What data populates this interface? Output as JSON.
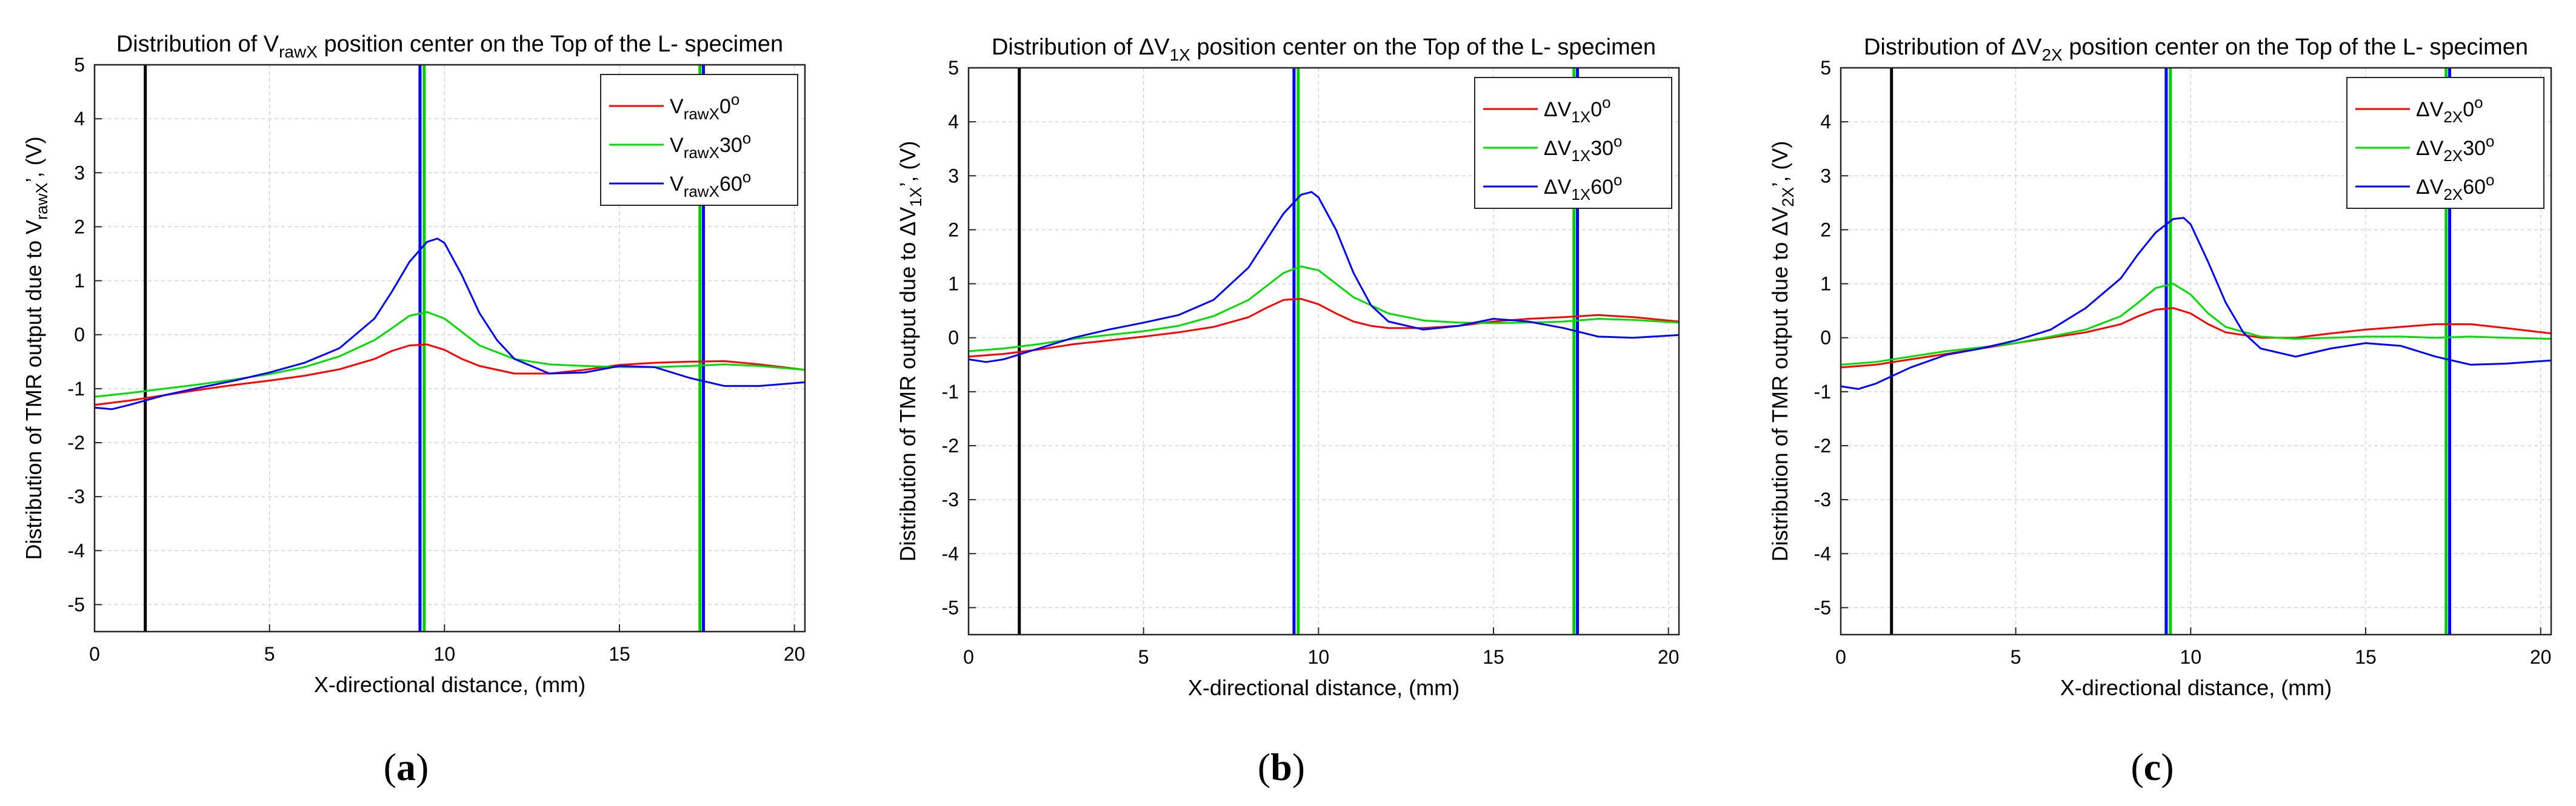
{
  "figure": {
    "panels": [
      {
        "caption": {
          "open": "(",
          "letter": "a",
          "close": ")"
        },
        "title_parts": {
          "pre": "Distribution of ",
          "sym": "V",
          "sub": "rawX",
          "post": " position center on the Top of the L- specimen"
        },
        "ylabel_parts": {
          "pre": "Distribution of TMR output due to ",
          "sym": "V",
          "sub": "rawX",
          "post": "’, (V)"
        },
        "legend": [
          {
            "sym": "V",
            "sub": "rawX",
            "val": "0",
            "sup": "o"
          },
          {
            "sym": "V",
            "sub": "rawX",
            "val": "30",
            "sup": "o"
          },
          {
            "sym": "V",
            "sub": "rawX",
            "val": "60",
            "sup": "o"
          }
        ]
      },
      {
        "caption": {
          "open": "(",
          "letter": "b",
          "close": ")"
        },
        "title_parts": {
          "pre": "Distribution of ",
          "sym": "ΔV",
          "sub": "1X",
          "post": " position center on the Top of the L- specimen"
        },
        "ylabel_parts": {
          "pre": "Distribution of TMR output due to ",
          "sym": "ΔV",
          "sub": "1X",
          "post": "’, (V)"
        },
        "legend": [
          {
            "sym": "ΔV",
            "sub": "1X",
            "val": "0",
            "sup": "o"
          },
          {
            "sym": "ΔV",
            "sub": "1X",
            "val": "30",
            "sup": "o"
          },
          {
            "sym": "ΔV",
            "sub": "1X",
            "val": "60",
            "sup": "o"
          }
        ]
      },
      {
        "caption": {
          "open": "(",
          "letter": "c",
          "close": ")"
        },
        "title_parts": {
          "pre": "Distribution of ",
          "sym": "ΔV",
          "sub": "2X",
          "post": " position center on the Top of the L- specimen"
        },
        "ylabel_parts": {
          "pre": "Distribution of TMR output due to ",
          "sym": "ΔV",
          "sub": "2X",
          "post": "’, (V)"
        },
        "legend": [
          {
            "sym": "ΔV",
            "sub": "2X",
            "val": "0",
            "sup": "o"
          },
          {
            "sym": "ΔV",
            "sub": "2X",
            "val": "30",
            "sup": "o"
          },
          {
            "sym": "ΔV",
            "sub": "2X",
            "val": "60",
            "sup": "o"
          }
        ]
      }
    ]
  },
  "chart_data": [
    {
      "type": "line",
      "title": "Distribution of VrawX position center on the Top of the L- specimen",
      "xlabel": "X-directional distance, (mm)",
      "ylabel": "Distribution of TMR output due to VrawX’, (V)",
      "xlim": [
        0,
        20.3
      ],
      "ylim": [
        -5.5,
        5
      ],
      "xticks": [
        0,
        5,
        10,
        15,
        20
      ],
      "xtick_labels": [
        "0",
        "5",
        "10",
        "15",
        "20"
      ],
      "yticks": [
        -5,
        -4,
        -3,
        -2,
        -1,
        0,
        1,
        2,
        3,
        4,
        5
      ],
      "ytick_labels": [
        "-5",
        "-4",
        "-3",
        "-2",
        "-1",
        "0",
        "1",
        "2",
        "3",
        "4",
        "5"
      ],
      "grid": true,
      "legend_position": "top-right",
      "vlines": [
        {
          "x": 1.45,
          "color": "#000000"
        },
        {
          "x": 9.3,
          "color": "#0000ff"
        },
        {
          "x": 9.42,
          "color": "#00d000"
        },
        {
          "x": 17.3,
          "color": "#00d000"
        },
        {
          "x": 17.4,
          "color": "#0000ff"
        }
      ],
      "series": [
        {
          "name": "VrawX0o",
          "color": "#ff0000",
          "x": [
            0,
            1,
            2,
            3,
            4,
            5,
            6,
            7,
            8,
            8.5,
            9,
            9.5,
            10,
            10.5,
            11,
            12,
            13,
            14,
            15,
            16,
            17,
            18,
            19,
            20.3
          ],
          "y": [
            -1.3,
            -1.22,
            -1.12,
            -1.02,
            -0.93,
            -0.85,
            -0.76,
            -0.64,
            -0.45,
            -0.3,
            -0.2,
            -0.18,
            -0.28,
            -0.45,
            -0.58,
            -0.72,
            -0.72,
            -0.65,
            -0.56,
            -0.52,
            -0.5,
            -0.49,
            -0.55,
            -0.65
          ]
        },
        {
          "name": "VrawX30o",
          "color": "#00dd00",
          "x": [
            0,
            1,
            2,
            3,
            4,
            5,
            6,
            7,
            8,
            8.5,
            9,
            9.5,
            10,
            10.5,
            11,
            12,
            13,
            14,
            15,
            16,
            17,
            18,
            19,
            20.3
          ],
          "y": [
            -1.15,
            -1.08,
            -1.0,
            -0.92,
            -0.83,
            -0.73,
            -0.6,
            -0.4,
            -0.1,
            0.12,
            0.35,
            0.42,
            0.3,
            0.05,
            -0.2,
            -0.45,
            -0.55,
            -0.58,
            -0.6,
            -0.6,
            -0.58,
            -0.55,
            -0.58,
            -0.65
          ]
        },
        {
          "name": "VrawX60o",
          "color": "#0000ff",
          "x": [
            0,
            0.5,
            1,
            2,
            3,
            4,
            5,
            6,
            7,
            8,
            8.5,
            9,
            9.5,
            9.8,
            10,
            10.5,
            11,
            11.5,
            12,
            13,
            14,
            15,
            16,
            17,
            18,
            19,
            20.3
          ],
          "y": [
            -1.35,
            -1.38,
            -1.3,
            -1.12,
            -0.98,
            -0.85,
            -0.7,
            -0.52,
            -0.25,
            0.3,
            0.8,
            1.35,
            1.72,
            1.78,
            1.7,
            1.1,
            0.4,
            -0.1,
            -0.45,
            -0.72,
            -0.7,
            -0.58,
            -0.6,
            -0.8,
            -0.95,
            -0.95,
            -0.88
          ]
        }
      ]
    },
    {
      "type": "line",
      "title": "Distribution of ΔV1X position center on the Top of the L- specimen",
      "xlabel": "X-directional distance, (mm)",
      "ylabel": "Distribution of TMR output due to ΔV1X’, (V)",
      "xlim": [
        0,
        20.3
      ],
      "ylim": [
        -5.5,
        5
      ],
      "xticks": [
        0,
        5,
        10,
        15,
        20
      ],
      "xtick_labels": [
        "0",
        "5",
        "10",
        "15",
        "20"
      ],
      "yticks": [
        -5,
        -4,
        -3,
        -2,
        -1,
        0,
        1,
        2,
        3,
        4,
        5
      ],
      "ytick_labels": [
        "-5",
        "-4",
        "-3",
        "-2",
        "-1",
        "0",
        "1",
        "2",
        "3",
        "4",
        "5"
      ],
      "grid": true,
      "legend_position": "top-right",
      "vlines": [
        {
          "x": 1.45,
          "color": "#000000"
        },
        {
          "x": 9.3,
          "color": "#0000ff"
        },
        {
          "x": 9.42,
          "color": "#00d000"
        },
        {
          "x": 17.3,
          "color": "#00d000"
        },
        {
          "x": 17.4,
          "color": "#0000ff"
        }
      ],
      "series": [
        {
          "name": "ΔV1X0o",
          "color": "#ff0000",
          "x": [
            0,
            1,
            2,
            3,
            4,
            5,
            6,
            7,
            8,
            8.5,
            9,
            9.5,
            10,
            10.5,
            11,
            11.5,
            12,
            13,
            14,
            15,
            16,
            17,
            18,
            19,
            20.3
          ],
          "y": [
            -0.35,
            -0.3,
            -0.22,
            -0.12,
            -0.05,
            0.02,
            0.1,
            0.2,
            0.38,
            0.55,
            0.7,
            0.72,
            0.62,
            0.45,
            0.3,
            0.22,
            0.18,
            0.18,
            0.22,
            0.3,
            0.35,
            0.38,
            0.42,
            0.38,
            0.3
          ]
        },
        {
          "name": "ΔV1X30o",
          "color": "#00dd00",
          "x": [
            0,
            1,
            2,
            3,
            4,
            5,
            6,
            7,
            8,
            8.5,
            9,
            9.5,
            10,
            10.5,
            11,
            12,
            13,
            14,
            15,
            16,
            17,
            18,
            19,
            20.3
          ],
          "y": [
            -0.25,
            -0.2,
            -0.12,
            -0.02,
            0.05,
            0.12,
            0.22,
            0.4,
            0.7,
            0.95,
            1.2,
            1.32,
            1.25,
            1.0,
            0.75,
            0.45,
            0.32,
            0.28,
            0.27,
            0.28,
            0.3,
            0.35,
            0.33,
            0.28
          ]
        },
        {
          "name": "ΔV1X60o",
          "color": "#0000ff",
          "x": [
            0,
            0.5,
            1,
            2,
            3,
            4,
            5,
            6,
            7,
            8,
            8.5,
            9,
            9.5,
            9.8,
            10,
            10.5,
            11,
            11.5,
            12,
            13,
            14,
            15,
            16,
            17,
            18,
            19,
            20.3
          ],
          "y": [
            -0.4,
            -0.45,
            -0.4,
            -0.2,
            0.0,
            0.15,
            0.28,
            0.42,
            0.7,
            1.3,
            1.8,
            2.3,
            2.65,
            2.7,
            2.6,
            2.0,
            1.2,
            0.6,
            0.3,
            0.15,
            0.22,
            0.35,
            0.3,
            0.18,
            0.02,
            0.0,
            0.05
          ]
        }
      ]
    },
    {
      "type": "line",
      "title": "Distribution of ΔV2X position center on the Top of the L- specimen",
      "xlabel": "X-directional distance, (mm)",
      "ylabel": "Distribution of TMR output due to ΔV2X’, (V)",
      "xlim": [
        0,
        20.3
      ],
      "ylim": [
        -5.5,
        5
      ],
      "xticks": [
        0,
        5,
        10,
        15,
        20
      ],
      "xtick_labels": [
        "0",
        "5",
        "10",
        "15",
        "20"
      ],
      "yticks": [
        -5,
        -4,
        -3,
        -2,
        -1,
        0,
        1,
        2,
        3,
        4,
        5
      ],
      "ytick_labels": [
        "-5",
        "-4",
        "-3",
        "-2",
        "-1",
        "0",
        "1",
        "2",
        "3",
        "4",
        "5"
      ],
      "grid": true,
      "legend_position": "top-right",
      "vlines": [
        {
          "x": 1.45,
          "color": "#000000"
        },
        {
          "x": 9.3,
          "color": "#0000ff"
        },
        {
          "x": 9.42,
          "color": "#00d000"
        },
        {
          "x": 17.3,
          "color": "#00d000"
        },
        {
          "x": 17.4,
          "color": "#0000ff"
        }
      ],
      "series": [
        {
          "name": "ΔV2X0o",
          "color": "#ff0000",
          "x": [
            0,
            1,
            2,
            3,
            4,
            5,
            6,
            7,
            8,
            8.5,
            9,
            9.5,
            10,
            10.5,
            11,
            12,
            13,
            14,
            15,
            16,
            17,
            18,
            19,
            20.3
          ],
          "y": [
            -0.55,
            -0.5,
            -0.4,
            -0.3,
            -0.2,
            -0.1,
            0.0,
            0.1,
            0.25,
            0.4,
            0.52,
            0.55,
            0.45,
            0.25,
            0.1,
            0.0,
            0.0,
            0.08,
            0.15,
            0.2,
            0.25,
            0.25,
            0.18,
            0.08
          ]
        },
        {
          "name": "ΔV2X30o",
          "color": "#00dd00",
          "x": [
            0,
            1,
            2,
            3,
            4,
            5,
            6,
            7,
            8,
            8.5,
            9,
            9.5,
            10,
            10.5,
            11,
            12,
            13,
            14,
            15,
            16,
            17,
            18,
            19,
            20.3
          ],
          "y": [
            -0.5,
            -0.45,
            -0.35,
            -0.25,
            -0.18,
            -0.1,
            0.02,
            0.15,
            0.4,
            0.65,
            0.92,
            1.0,
            0.8,
            0.45,
            0.2,
            0.02,
            -0.02,
            0.0,
            0.02,
            0.02,
            0.0,
            0.02,
            0.0,
            -0.02
          ]
        },
        {
          "name": "ΔV2X60o",
          "color": "#0000ff",
          "x": [
            0,
            0.5,
            1,
            2,
            3,
            4,
            5,
            6,
            7,
            8,
            8.5,
            9,
            9.5,
            9.8,
            10,
            10.5,
            11,
            11.5,
            12,
            13,
            14,
            15,
            16,
            17,
            18,
            19,
            20.3
          ],
          "y": [
            -0.9,
            -0.95,
            -0.85,
            -0.55,
            -0.32,
            -0.2,
            -0.05,
            0.15,
            0.55,
            1.1,
            1.55,
            1.95,
            2.2,
            2.22,
            2.1,
            1.4,
            0.65,
            0.1,
            -0.2,
            -0.35,
            -0.2,
            -0.1,
            -0.15,
            -0.35,
            -0.5,
            -0.48,
            -0.42
          ]
        }
      ]
    }
  ]
}
